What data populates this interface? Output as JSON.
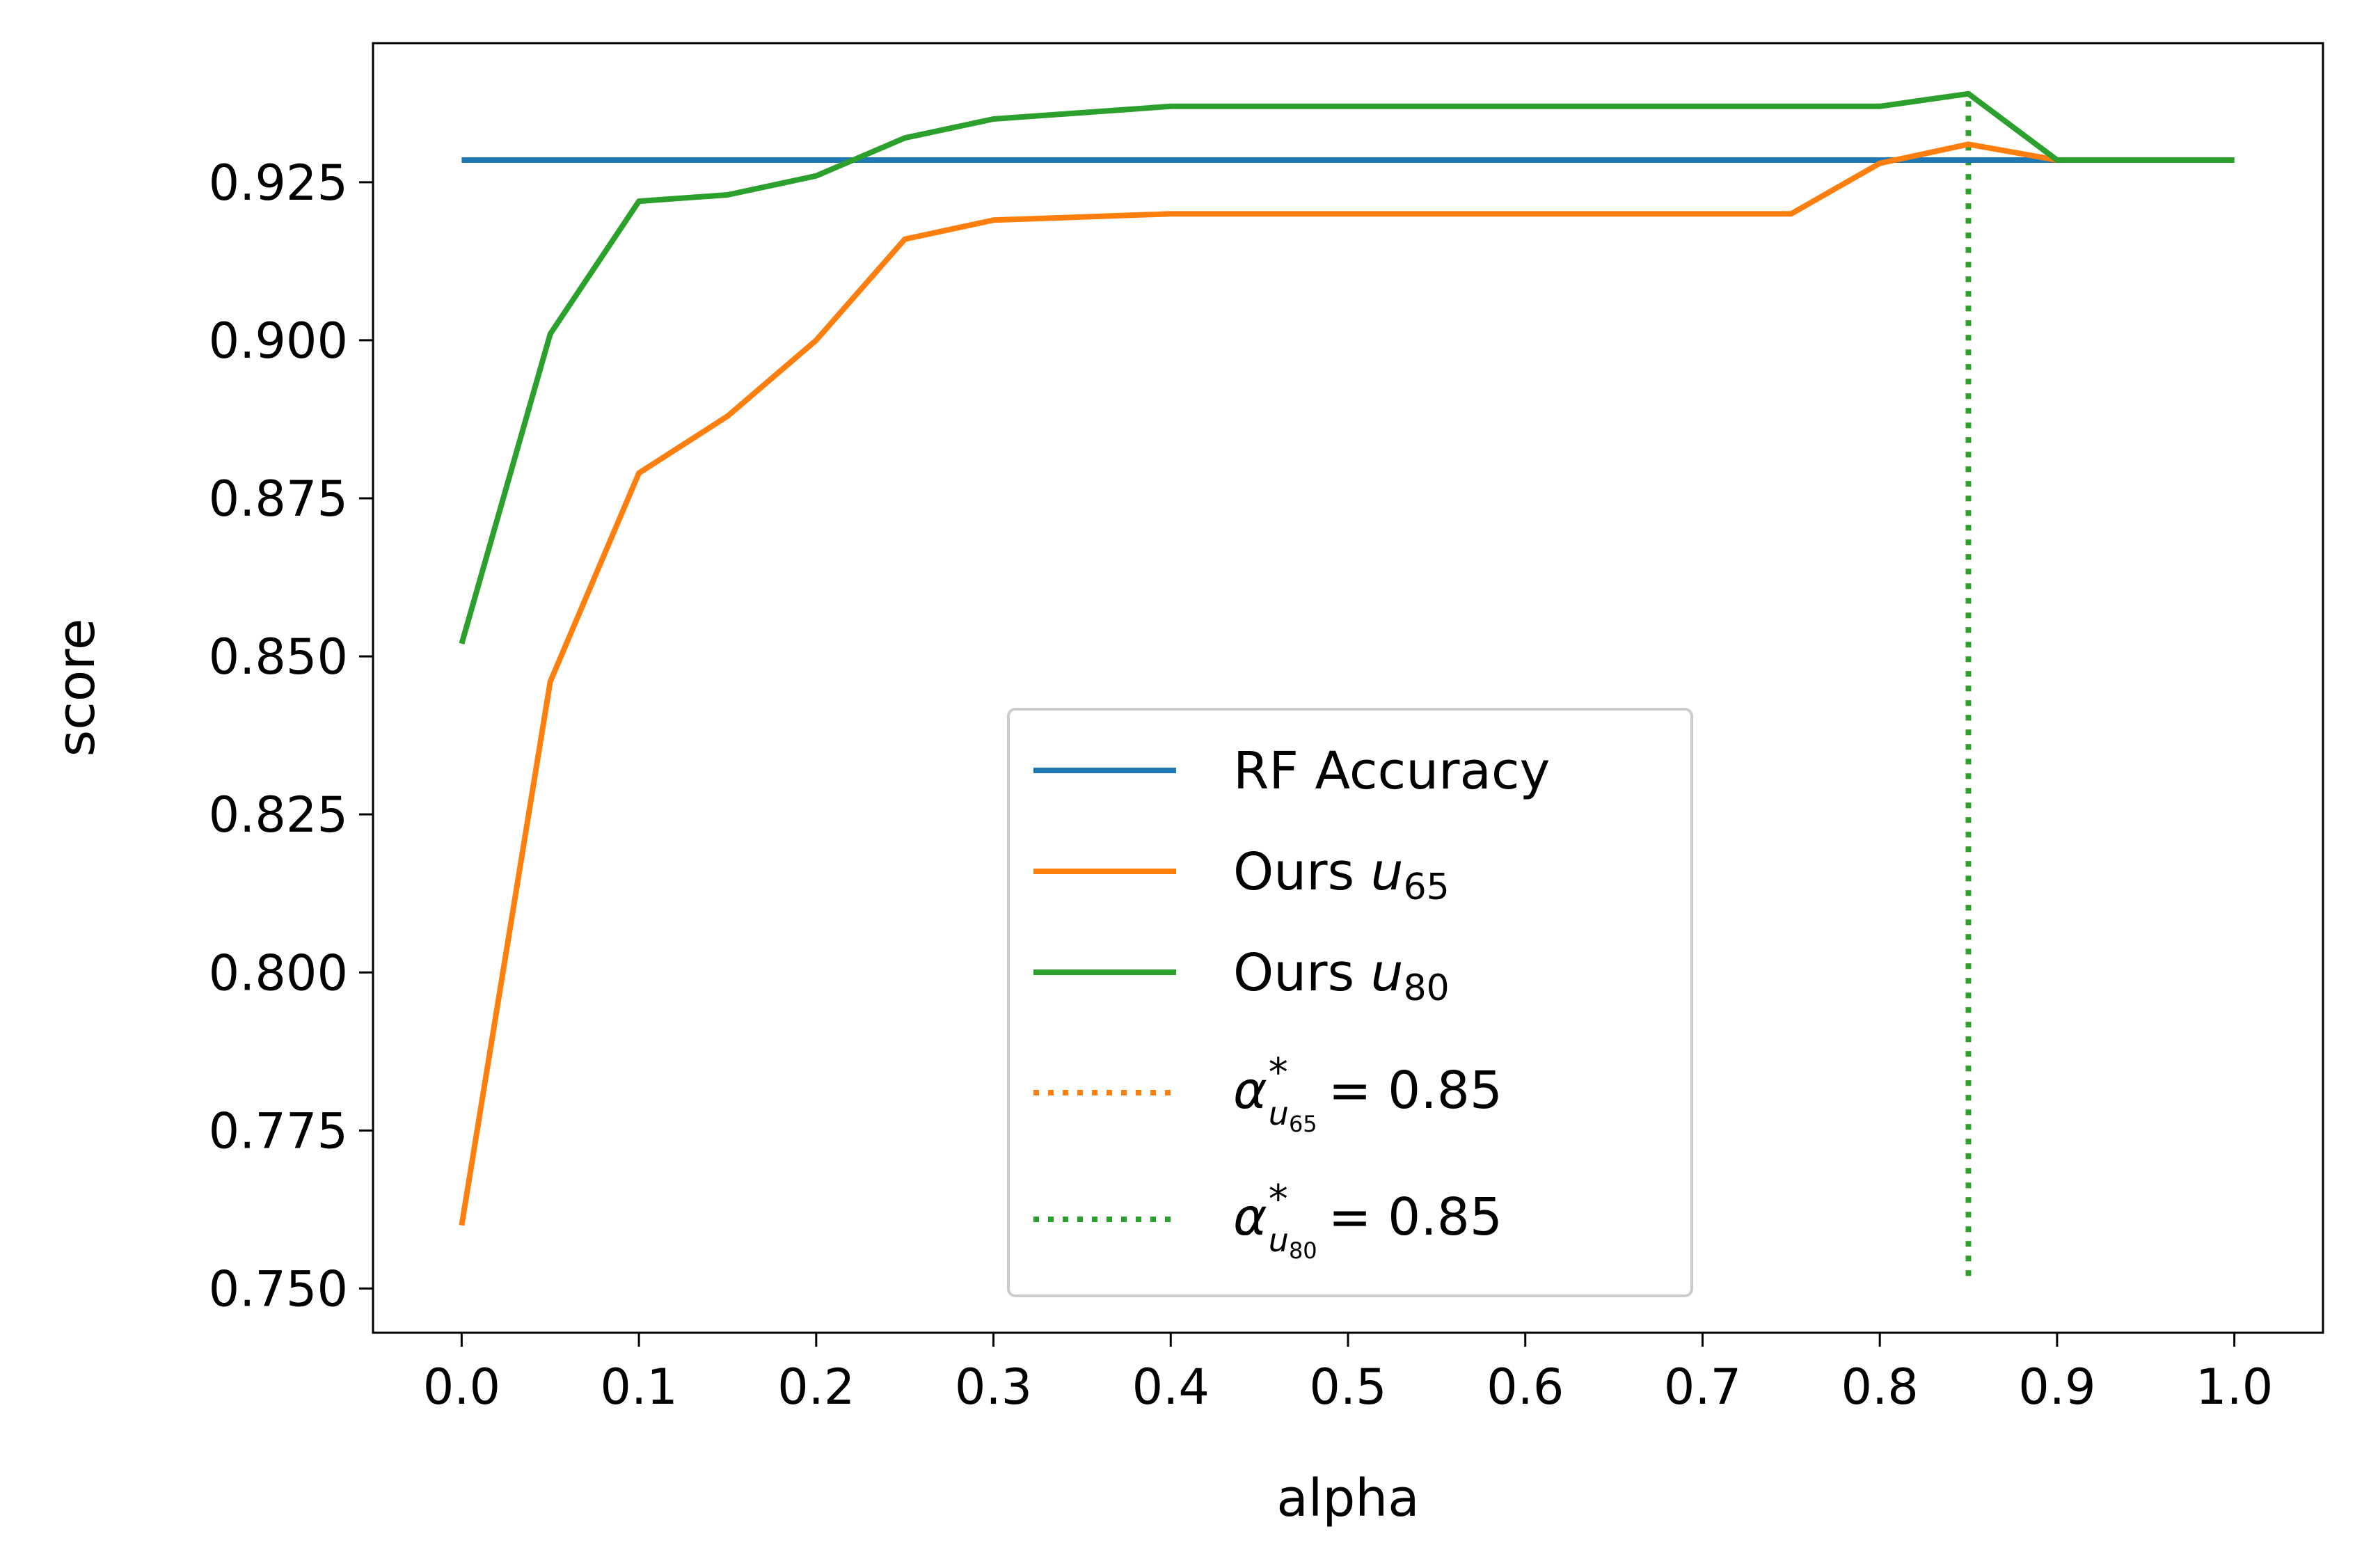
{
  "chart_data": {
    "type": "line",
    "xlabel": "alpha",
    "ylabel": "score",
    "xlim": [
      -0.05,
      1.05
    ],
    "ylim": [
      0.743,
      0.947
    ],
    "xticks": [
      "0.0",
      "0.1",
      "0.2",
      "0.3",
      "0.4",
      "0.5",
      "0.6",
      "0.7",
      "0.8",
      "0.9",
      "1.0"
    ],
    "yticks": [
      "0.750",
      "0.775",
      "0.800",
      "0.825",
      "0.850",
      "0.875",
      "0.900",
      "0.925"
    ],
    "grid": false,
    "legend_position": "lower-center",
    "series": [
      {
        "name": "RF Accuracy",
        "color": "#1f77b4",
        "style": "solid",
        "x": [
          0.0,
          1.0
        ],
        "y": [
          0.9285,
          0.9285
        ]
      },
      {
        "name": "Ours u65",
        "color": "#ff7f0e",
        "style": "solid",
        "x": [
          0.0,
          0.05,
          0.1,
          0.15,
          0.2,
          0.25,
          0.3,
          0.4,
          0.5,
          0.6,
          0.7,
          0.75,
          0.8,
          0.85,
          0.9,
          1.0
        ],
        "y": [
          0.76,
          0.846,
          0.879,
          0.888,
          0.9,
          0.916,
          0.919,
          0.92,
          0.92,
          0.92,
          0.92,
          0.92,
          0.928,
          0.931,
          0.9285,
          0.9285
        ]
      },
      {
        "name": "Ours u80",
        "color": "#2ca02c",
        "style": "solid",
        "x": [
          0.0,
          0.05,
          0.1,
          0.15,
          0.2,
          0.25,
          0.3,
          0.4,
          0.5,
          0.6,
          0.7,
          0.8,
          0.85,
          0.9,
          1.0
        ],
        "y": [
          0.852,
          0.901,
          0.922,
          0.923,
          0.926,
          0.932,
          0.935,
          0.937,
          0.937,
          0.937,
          0.937,
          0.937,
          0.939,
          0.9285,
          0.9285
        ]
      },
      {
        "name": "alpha* u65 = 0.85",
        "color": "#ff7f0e",
        "style": "dotted",
        "x": [
          0.85,
          0.85
        ],
        "y": [
          0.752,
          0.9385
        ]
      },
      {
        "name": "alpha* u80 = 0.85",
        "color": "#2ca02c",
        "style": "dotted",
        "x": [
          0.85,
          0.85
        ],
        "y": [
          0.752,
          0.9385
        ]
      }
    ],
    "legend": [
      {
        "label": "RF Accuracy",
        "color": "#1f77b4",
        "style": "solid",
        "kind": "plain"
      },
      {
        "label_main": "Ours ",
        "label_math": "u",
        "label_sub": "65",
        "color": "#ff7f0e",
        "style": "solid",
        "kind": "sub"
      },
      {
        "label_main": "Ours ",
        "label_math": "u",
        "label_sub": "80",
        "color": "#2ca02c",
        "style": "solid",
        "kind": "sub"
      },
      {
        "label_math": "α",
        "label_sup": "*",
        "label_subsub": "65",
        "label_value": "= 0.85",
        "color": "#ff7f0e",
        "style": "dotted",
        "kind": "alpha"
      },
      {
        "label_math": "α",
        "label_sup": "*",
        "label_subsub": "80",
        "label_value": "= 0.85",
        "color": "#2ca02c",
        "style": "dotted",
        "kind": "alpha"
      }
    ]
  }
}
